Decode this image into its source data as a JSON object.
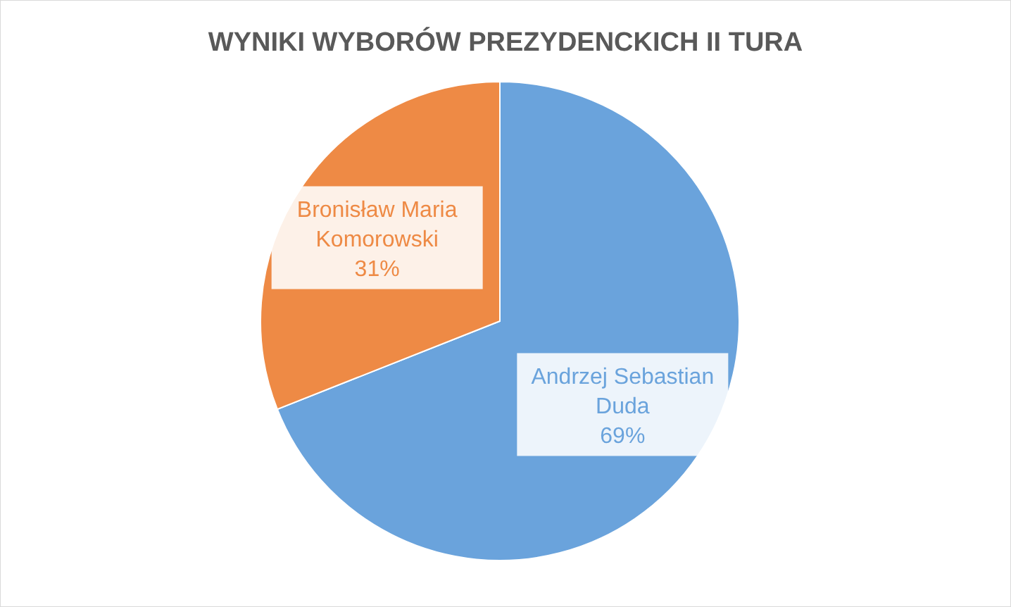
{
  "chart_data": {
    "type": "pie",
    "title": "WYNIKI WYBORÓW PREZYDENCKICH II TURA",
    "categories": [
      "Andrzej Sebastian Duda",
      "Bronisław Maria Komorowski"
    ],
    "values": [
      69,
      31
    ],
    "colors": [
      "#6aa3dc",
      "#ee8a45"
    ],
    "value_labels": [
      "69%",
      "31%"
    ],
    "legend": false
  }
}
